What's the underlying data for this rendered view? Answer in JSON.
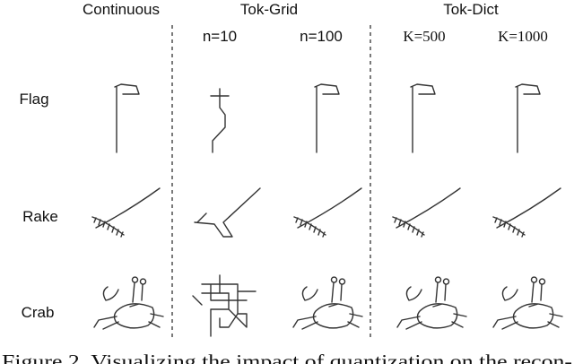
{
  "columns": {
    "continuous": "Continuous",
    "tok_grid": {
      "title": "Tok-Grid",
      "settings": [
        "n=10",
        "n=100"
      ]
    },
    "tok_dict": {
      "title": "Tok-Dict",
      "settings": [
        "K=500",
        "K=1000"
      ]
    }
  },
  "rows": [
    "Flag",
    "Rake",
    "Crab"
  ],
  "caption": "Figure 2. Visualizing the impact of quantization on the recon-"
}
